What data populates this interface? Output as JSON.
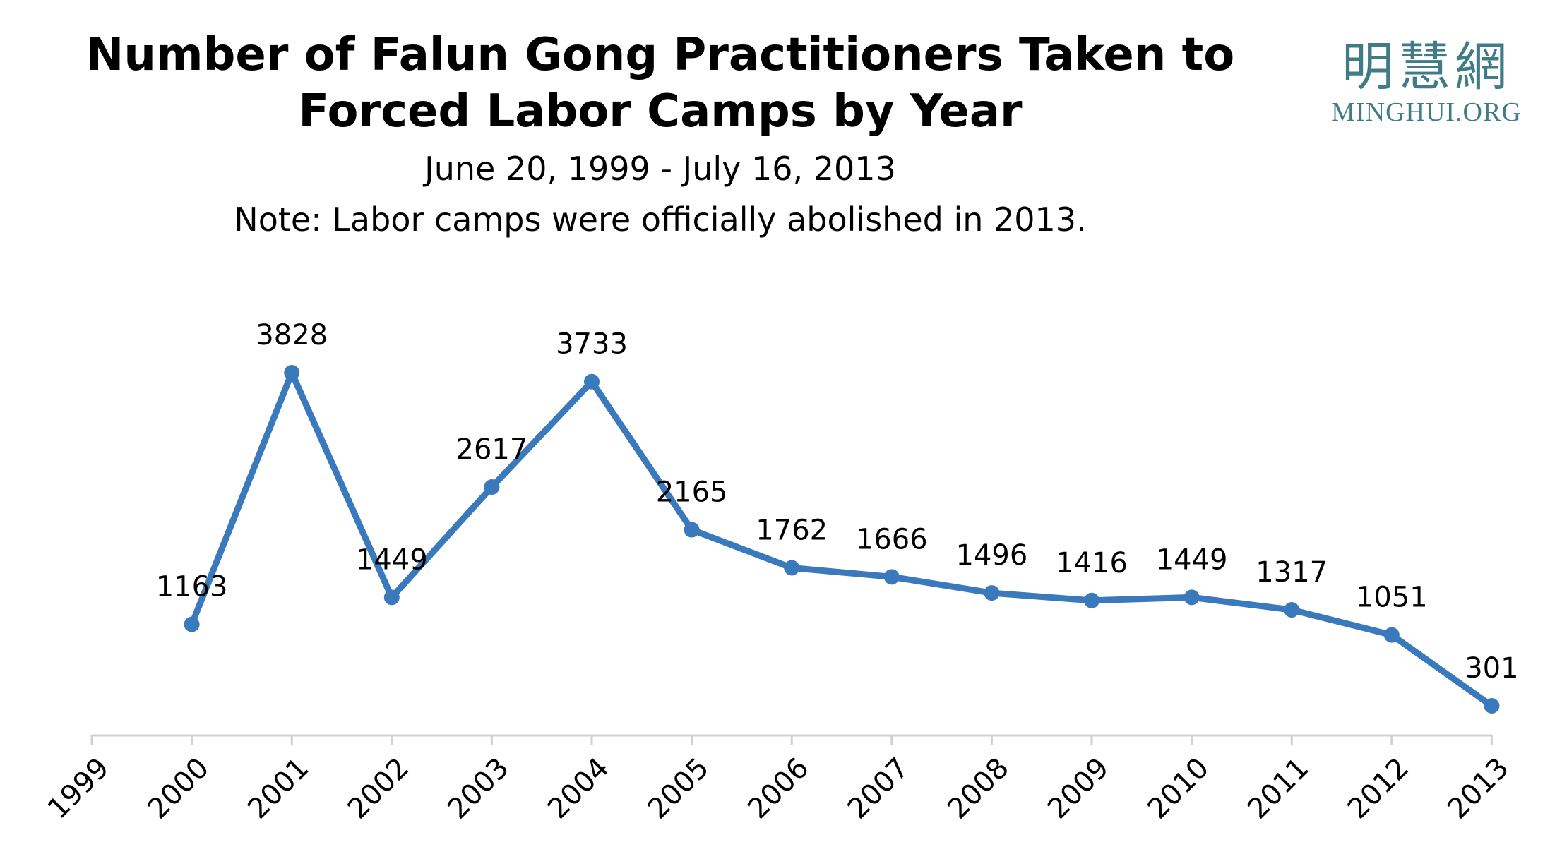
{
  "header": {
    "title_line1": "Number of Falun Gong Practitioners Taken to",
    "title_line2": "Forced Labor Camps by Year",
    "subtitle": "June 20, 1999 - July 16, 2013",
    "note": "Note: Labor camps were officially abolished in 2013."
  },
  "logo": {
    "chinese": "明慧網",
    "english": "MINGHUI.ORG"
  },
  "colors": {
    "series": "#3a79bb",
    "axis": "#d0d0d0",
    "logo": "#3f7c86"
  },
  "chart_data": {
    "type": "line",
    "title": "Number of Falun Gong Practitioners Taken to Forced Labor Camps by Year",
    "categories": [
      "1999",
      "2000",
      "2001",
      "2002",
      "2003",
      "2004",
      "2005",
      "2006",
      "2007",
      "2008",
      "2009",
      "2010",
      "2011",
      "2012",
      "2013"
    ],
    "series": [
      {
        "values": [
          null,
          1163,
          3828,
          1449,
          2617,
          3733,
          2165,
          1762,
          1666,
          1496,
          1416,
          1449,
          1317,
          1051,
          301
        ]
      }
    ],
    "xlabel": "",
    "ylabel": "",
    "ylim": [
      0,
      4000
    ],
    "grid": false,
    "legend": "none",
    "data_labels": true
  }
}
